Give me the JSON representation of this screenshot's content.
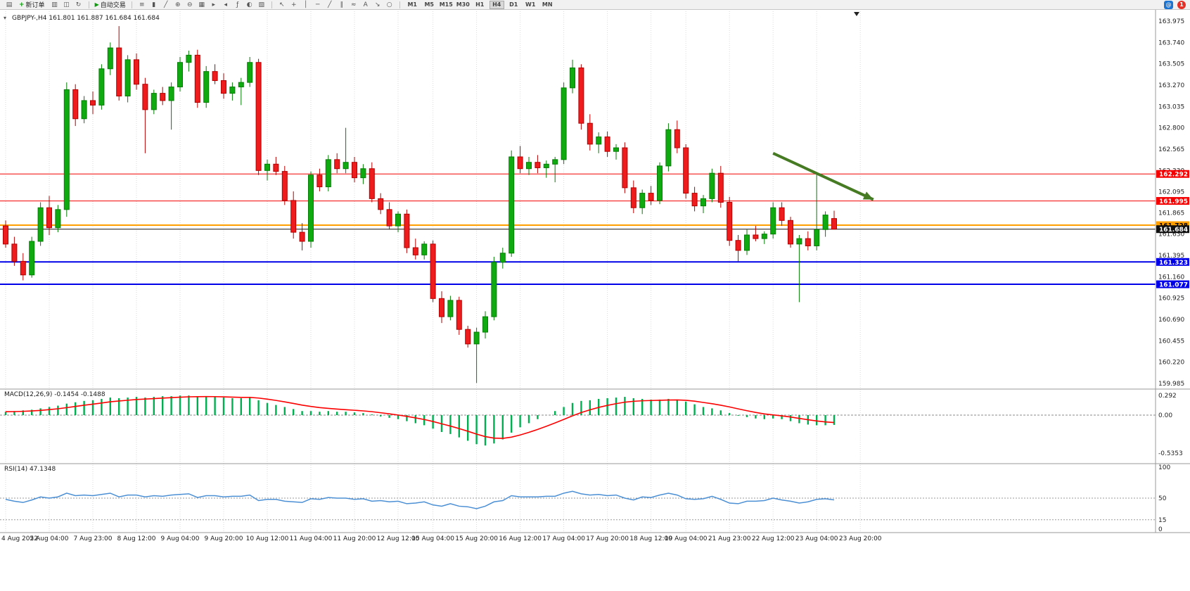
{
  "toolbar": {
    "new_order_label": "新订单",
    "autotrading_label": "自动交易",
    "timeframes": [
      "M1",
      "M5",
      "M15",
      "M30",
      "H1",
      "H4",
      "D1",
      "W1",
      "MN"
    ],
    "active_timeframe": "H4",
    "badge_count": "1",
    "icon_groups": {
      "g0": [
        {
          "name": "new-chart-icon",
          "glyph": "▤"
        }
      ],
      "g1": [
        {
          "name": "profiles-icon",
          "glyph": "▥"
        },
        {
          "name": "charts-grid-icon",
          "glyph": "◫"
        },
        {
          "name": "refresh-icon",
          "glyph": "↻"
        }
      ],
      "g2": [
        {
          "name": "bar-chart-icon",
          "glyph": "≡"
        },
        {
          "name": "candlestick-chart-icon",
          "glyph": "▮"
        },
        {
          "name": "line-chart-icon",
          "glyph": "╱"
        },
        {
          "name": "zoom-in-icon",
          "glyph": "⊕"
        },
        {
          "name": "zoom-out-icon",
          "glyph": "⊖"
        },
        {
          "name": "tile-windows-icon",
          "glyph": "▦"
        },
        {
          "name": "auto-scroll-icon",
          "glyph": "▸"
        },
        {
          "name": "chart-shift-icon",
          "glyph": "◂"
        },
        {
          "name": "indicators-icon",
          "glyph": "ƒ"
        },
        {
          "name": "periods-icon",
          "glyph": "◐"
        },
        {
          "name": "templates-icon",
          "glyph": "▧"
        }
      ],
      "g3": [
        {
          "name": "cursor-icon",
          "glyph": "↖"
        },
        {
          "name": "crosshair-icon",
          "glyph": "+"
        },
        {
          "name": "vertical-line-icon",
          "glyph": "│"
        },
        {
          "name": "horizontal-line-icon",
          "glyph": "─"
        },
        {
          "name": "trendline-icon",
          "glyph": "╱"
        },
        {
          "name": "channel-icon",
          "glyph": "∥"
        },
        {
          "name": "fibonacci-icon",
          "glyph": "≈"
        },
        {
          "name": "text-icon",
          "glyph": "A"
        },
        {
          "name": "arrow-tool-icon",
          "glyph": "↘"
        },
        {
          "name": "shapes-icon",
          "glyph": "○"
        }
      ]
    }
  },
  "icons": {
    "one_click": "▾",
    "community": "@",
    "new_order_plus": "+",
    "autotrading_play": "▶"
  },
  "panel_labels": {
    "main": "GBPJPY-,H4 161.801 161.887 161.684 161.684",
    "macd": "MACD(12,26,9) -0.1454 -0.1488",
    "rsi": "RSI(14) 47.1348"
  },
  "chart_data": [
    {
      "type": "candlestick",
      "symbol": "GBPJPY-",
      "timeframe": "H4",
      "ohlc_display": [
        "161.801",
        "161.887",
        "161.684",
        "161.684"
      ],
      "bull_color": "#0faa0f",
      "bull_border": "#067d06",
      "bear_color": "#ee1c1c",
      "bear_border": "#b30000",
      "y_axis": {
        "top_value": 163.975,
        "bottom_value": 159.985,
        "ticks": [
          "163.975",
          "163.740",
          "163.505",
          "163.270",
          "163.035",
          "162.800",
          "162.565",
          "162.330",
          "162.095",
          "161.865",
          "161.630",
          "161.395",
          "161.160",
          "160.925",
          "160.690",
          "160.455",
          "160.220",
          "159.985"
        ]
      },
      "hlines": [
        {
          "value": 162.292,
          "label": "162.292",
          "color": "#f40000",
          "text": "#ffffff",
          "width": 1
        },
        {
          "value": 161.995,
          "label": "161.995",
          "color": "#f40000",
          "text": "#ffffff",
          "width": 1
        },
        {
          "value": 161.728,
          "label": "161.728",
          "color": "#ffa000",
          "text": "#000000",
          "width": 2
        },
        {
          "value": 161.684,
          "label": "161.684",
          "color": "#101010",
          "text": "#ffffff",
          "width": 1
        },
        {
          "value": 161.323,
          "label": "161.323",
          "color": "#0000e8",
          "text": "#ffffff",
          "width": 2
        },
        {
          "value": 161.077,
          "label": "161.077",
          "color": "#0000e8",
          "text": "#ffffff",
          "width": 2
        }
      ],
      "x_labels": [
        {
          "text": "4 Aug 2022",
          "i": 0
        },
        {
          "text": "5 Aug 04:00",
          "i": 5
        },
        {
          "text": "7 Aug 23:00",
          "i": 10
        },
        {
          "text": "8 Aug 12:00",
          "i": 15
        },
        {
          "text": "9 Aug 04:00",
          "i": 20
        },
        {
          "text": "9 Aug 20:00",
          "i": 25
        },
        {
          "text": "10 Aug 12:00",
          "i": 30
        },
        {
          "text": "11 Aug 04:00",
          "i": 35
        },
        {
          "text": "11 Aug 20:00",
          "i": 40
        },
        {
          "text": "12 Aug 12:00",
          "i": 45
        },
        {
          "text": "15 Aug 04:00",
          "i": 49
        },
        {
          "text": "15 Aug 20:00",
          "i": 54
        },
        {
          "text": "16 Aug 12:00",
          "i": 59
        },
        {
          "text": "17 Aug 04:00",
          "i": 64
        },
        {
          "text": "17 Aug 20:00",
          "i": 69
        },
        {
          "text": "18 Aug 12:00",
          "i": 74
        },
        {
          "text": "19 Aug 04:00",
          "i": 78
        },
        {
          "text": "21 Aug 23:00",
          "i": 83
        },
        {
          "text": "22 Aug 12:00",
          "i": 88
        },
        {
          "text": "23 Aug 04:00",
          "i": 93
        },
        {
          "text": "23 Aug 20:00",
          "i": 98
        }
      ],
      "arrow": {
        "from": {
          "i": 88,
          "price": 162.52
        },
        "to": {
          "i": 99.5,
          "price": 162.01
        },
        "color": "#467a23"
      },
      "candles": [
        [
          161.72,
          161.78,
          161.48,
          161.52
        ],
        [
          161.52,
          161.6,
          161.28,
          161.33
        ],
        [
          161.33,
          161.42,
          161.12,
          161.18
        ],
        [
          161.18,
          161.6,
          161.15,
          161.55
        ],
        [
          161.55,
          161.98,
          161.5,
          161.92
        ],
        [
          161.92,
          162.05,
          161.62,
          161.7
        ],
        [
          161.7,
          161.95,
          161.65,
          161.9
        ],
        [
          161.9,
          163.3,
          161.82,
          163.22
        ],
        [
          163.22,
          163.28,
          162.82,
          162.9
        ],
        [
          162.9,
          163.15,
          162.85,
          163.1
        ],
        [
          163.1,
          163.2,
          162.95,
          163.05
        ],
        [
          163.05,
          163.5,
          163.0,
          163.45
        ],
        [
          163.45,
          163.74,
          163.38,
          163.68
        ],
        [
          163.68,
          163.92,
          163.1,
          163.15
        ],
        [
          163.15,
          163.6,
          163.08,
          163.55
        ],
        [
          163.55,
          163.62,
          163.22,
          163.28
        ],
        [
          163.28,
          163.35,
          162.52,
          163.0
        ],
        [
          163.0,
          163.22,
          162.95,
          163.18
        ],
        [
          163.18,
          163.25,
          163.05,
          163.1
        ],
        [
          163.1,
          163.3,
          162.78,
          163.25
        ],
        [
          163.25,
          163.58,
          163.2,
          163.52
        ],
        [
          163.52,
          163.65,
          163.42,
          163.6
        ],
        [
          163.6,
          163.66,
          163.02,
          163.08
        ],
        [
          163.08,
          163.48,
          163.02,
          163.42
        ],
        [
          163.42,
          163.5,
          163.28,
          163.32
        ],
        [
          163.32,
          163.4,
          163.12,
          163.18
        ],
        [
          163.18,
          163.3,
          163.1,
          163.25
        ],
        [
          163.25,
          163.35,
          163.05,
          163.3
        ],
        [
          163.3,
          163.58,
          163.25,
          163.52
        ],
        [
          163.52,
          163.56,
          162.28,
          162.33
        ],
        [
          162.33,
          162.45,
          162.22,
          162.4
        ],
        [
          162.4,
          162.48,
          162.28,
          162.32
        ],
        [
          162.32,
          162.38,
          161.95,
          162.0
        ],
        [
          162.0,
          162.1,
          161.58,
          161.65
        ],
        [
          161.65,
          161.75,
          161.45,
          161.55
        ],
        [
          161.55,
          162.32,
          161.48,
          162.28
        ],
        [
          162.28,
          162.35,
          162.1,
          162.15
        ],
        [
          162.15,
          162.5,
          162.1,
          162.45
        ],
        [
          162.45,
          162.52,
          162.3,
          162.35
        ],
        [
          162.35,
          162.8,
          162.3,
          162.42
        ],
        [
          162.42,
          162.48,
          162.2,
          162.25
        ],
        [
          162.25,
          162.4,
          162.18,
          162.35
        ],
        [
          162.35,
          162.42,
          161.98,
          162.02
        ],
        [
          162.02,
          162.08,
          161.85,
          161.9
        ],
        [
          161.9,
          161.98,
          161.68,
          161.72
        ],
        [
          161.72,
          161.88,
          161.65,
          161.85
        ],
        [
          161.85,
          161.9,
          161.42,
          161.48
        ],
        [
          161.48,
          161.58,
          161.35,
          161.4
        ],
        [
          161.4,
          161.55,
          161.35,
          161.52
        ],
        [
          161.52,
          161.56,
          160.88,
          160.92
        ],
        [
          160.92,
          161.0,
          160.65,
          160.72
        ],
        [
          160.72,
          160.95,
          160.68,
          160.9
        ],
        [
          160.9,
          160.94,
          160.52,
          160.58
        ],
        [
          160.58,
          160.62,
          160.38,
          160.42
        ],
        [
          160.42,
          160.6,
          159.99,
          160.55
        ],
        [
          160.55,
          160.78,
          160.48,
          160.72
        ],
        [
          160.72,
          161.38,
          160.68,
          161.32
        ],
        [
          161.32,
          161.48,
          161.25,
          161.42
        ],
        [
          161.42,
          162.55,
          161.38,
          162.48
        ],
        [
          162.48,
          162.6,
          162.3,
          162.35
        ],
        [
          162.35,
          162.48,
          162.28,
          162.42
        ],
        [
          162.42,
          162.5,
          162.3,
          162.36
        ],
        [
          162.36,
          162.44,
          162.25,
          162.4
        ],
        [
          162.4,
          162.48,
          162.2,
          162.45
        ],
        [
          162.45,
          163.3,
          162.4,
          163.24
        ],
        [
          163.24,
          163.55,
          163.18,
          163.46
        ],
        [
          163.46,
          163.5,
          162.78,
          162.85
        ],
        [
          162.85,
          162.95,
          162.55,
          162.62
        ],
        [
          162.62,
          162.75,
          162.52,
          162.7
        ],
        [
          162.7,
          162.76,
          162.48,
          162.54
        ],
        [
          162.54,
          162.62,
          162.45,
          162.58
        ],
        [
          162.58,
          162.64,
          162.08,
          162.14
        ],
        [
          162.14,
          162.22,
          161.86,
          161.92
        ],
        [
          161.92,
          162.12,
          161.85,
          162.08
        ],
        [
          162.08,
          162.16,
          161.95,
          162.0
        ],
        [
          162.0,
          162.42,
          161.96,
          162.38
        ],
        [
          162.38,
          162.85,
          162.32,
          162.78
        ],
        [
          162.78,
          162.88,
          162.52,
          162.58
        ],
        [
          162.58,
          162.62,
          162.02,
          162.08
        ],
        [
          162.08,
          162.15,
          161.88,
          161.94
        ],
        [
          161.94,
          162.06,
          161.86,
          162.02
        ],
        [
          162.02,
          162.35,
          161.98,
          162.3
        ],
        [
          162.3,
          162.38,
          161.92,
          161.98
        ],
        [
          161.98,
          162.04,
          161.5,
          161.56
        ],
        [
          161.56,
          161.62,
          161.33,
          161.45
        ],
        [
          161.45,
          161.68,
          161.4,
          161.62
        ],
        [
          161.62,
          161.72,
          161.55,
          161.58
        ],
        [
          161.58,
          161.66,
          161.52,
          161.63
        ],
        [
          161.63,
          161.98,
          161.58,
          161.92
        ],
        [
          161.92,
          161.98,
          161.72,
          161.78
        ],
        [
          161.78,
          161.82,
          161.48,
          161.52
        ],
        [
          161.52,
          161.62,
          160.88,
          161.58
        ],
        [
          161.58,
          161.66,
          161.45,
          161.5
        ],
        [
          161.5,
          162.3,
          161.45,
          161.68
        ],
        [
          161.68,
          161.88,
          161.6,
          161.84
        ],
        [
          161.801,
          161.887,
          161.684,
          161.684
        ]
      ]
    },
    {
      "type": "bar",
      "name": "MACD",
      "params": "12,26,9",
      "values_display": [
        "-0.1454",
        "-0.1488"
      ],
      "histogram_color": "#00b050",
      "signal_color": "#ff0000",
      "axis_labels": [
        "0.292",
        "0.00",
        "-0.5353"
      ],
      "histogram": [
        0.05,
        0.06,
        0.07,
        0.08,
        0.1,
        0.12,
        0.14,
        0.17,
        0.19,
        0.21,
        0.22,
        0.24,
        0.26,
        0.25,
        0.26,
        0.27,
        0.26,
        0.27,
        0.28,
        0.28,
        0.29,
        0.29,
        0.28,
        0.28,
        0.27,
        0.26,
        0.25,
        0.25,
        0.26,
        0.22,
        0.18,
        0.15,
        0.12,
        0.09,
        0.06,
        0.06,
        0.05,
        0.06,
        0.05,
        0.05,
        0.04,
        0.03,
        0.01,
        -0.02,
        -0.04,
        -0.06,
        -0.09,
        -0.12,
        -0.15,
        -0.2,
        -0.25,
        -0.28,
        -0.33,
        -0.38,
        -0.43,
        -0.45,
        -0.42,
        -0.36,
        -0.26,
        -0.18,
        -0.12,
        -0.06,
        0.0,
        0.06,
        0.12,
        0.18,
        0.21,
        0.22,
        0.24,
        0.25,
        0.26,
        0.27,
        0.25,
        0.24,
        0.23,
        0.23,
        0.24,
        0.23,
        0.2,
        0.16,
        0.12,
        0.1,
        0.07,
        0.03,
        -0.01,
        -0.03,
        -0.05,
        -0.06,
        -0.05,
        -0.06,
        -0.09,
        -0.12,
        -0.14,
        -0.15,
        -0.15,
        -0.1454
      ]
    },
    {
      "type": "line",
      "name": "RSI",
      "params": "14",
      "value_display": "47.1348",
      "color": "#4b8fd4",
      "axis_labels": [
        "100",
        "50",
        "15",
        "0"
      ],
      "levels_dashed": [
        50,
        15
      ],
      "values": [
        48,
        45,
        43,
        47,
        52,
        50,
        52,
        58,
        54,
        55,
        54,
        56,
        58,
        52,
        55,
        55,
        52,
        54,
        53,
        55,
        56,
        57,
        51,
        54,
        54,
        52,
        53,
        53,
        55,
        46,
        48,
        48,
        45,
        44,
        43,
        49,
        48,
        51,
        50,
        50,
        48,
        49,
        45,
        46,
        44,
        45,
        41,
        42,
        44,
        39,
        37,
        41,
        37,
        36,
        33,
        37,
        44,
        46,
        54,
        52,
        52,
        52,
        53,
        53,
        58,
        61,
        57,
        55,
        56,
        54,
        55,
        50,
        47,
        52,
        51,
        55,
        58,
        55,
        49,
        48,
        49,
        53,
        48,
        42,
        41,
        45,
        45,
        46,
        50,
        47,
        45,
        42,
        44,
        48,
        49,
        47.1
      ]
    }
  ]
}
